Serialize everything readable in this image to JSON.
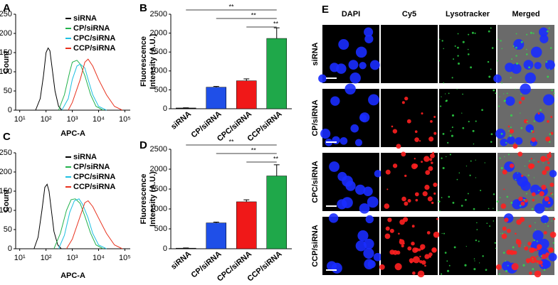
{
  "panel_labels": [
    "A",
    "B",
    "C",
    "D",
    "E"
  ],
  "chart_data": [
    {
      "type": "line",
      "log_x": true,
      "xlabel": "APC-A",
      "ylabel": "Count",
      "xlim": [
        7,
        160000
      ],
      "ylim": [
        0,
        250
      ],
      "xticks": [
        {
          "value": 10,
          "label": "10¹"
        },
        {
          "value": 100,
          "label": "10²"
        },
        {
          "value": 1000,
          "label": "10³"
        },
        {
          "value": 10000,
          "label": "10⁴"
        },
        {
          "value": 100000,
          "label": "10⁵"
        }
      ],
      "yticks": [
        0,
        50,
        100,
        150,
        200,
        250
      ],
      "legend": "upper right",
      "series": [
        {
          "name": "siRNA",
          "color": "#000000",
          "x": [
            40,
            60,
            80,
            100,
            120,
            140,
            170,
            220,
            300,
            400
          ],
          "values": [
            0,
            30,
            90,
            150,
            162,
            155,
            110,
            50,
            10,
            0
          ]
        },
        {
          "name": "CP/siRNA",
          "color": "#22b24c",
          "x": [
            300,
            500,
            800,
            1000,
            1500,
            2000,
            3000,
            5000,
            8000,
            15000
          ],
          "values": [
            0,
            40,
            100,
            125,
            130,
            120,
            90,
            40,
            10,
            0
          ]
        },
        {
          "name": "CPC/siRNA",
          "color": "#1fc0e0",
          "x": [
            400,
            700,
            1000,
            1500,
            2000,
            3000,
            4000,
            6000,
            10000,
            20000
          ],
          "values": [
            0,
            30,
            80,
            115,
            120,
            110,
            80,
            40,
            10,
            0
          ]
        },
        {
          "name": "CCP/siRNA",
          "color": "#e8321e",
          "x": [
            700,
            1000,
            2000,
            3000,
            4000,
            6000,
            10000,
            20000,
            40000,
            80000
          ],
          "values": [
            0,
            20,
            80,
            125,
            133,
            115,
            80,
            40,
            10,
            0
          ]
        }
      ]
    },
    {
      "type": "bar",
      "ylabel": [
        "Fluorescence",
        "Intensity (A.U.)"
      ],
      "categories": [
        "siRNA",
        "CP/siRNA",
        "CPC/siRNA",
        "CCP/siRNA"
      ],
      "values": [
        20,
        570,
        740,
        1860
      ],
      "errors": [
        5,
        20,
        50,
        280
      ],
      "colors": [
        "#000000",
        "#1f4fe8",
        "#f01818",
        "#1fa84a"
      ],
      "ylim": [
        0,
        2500
      ],
      "yticks": [
        0,
        500,
        1000,
        1500,
        2000,
        2500
      ],
      "annotations": [
        "**",
        "**",
        "**"
      ]
    },
    {
      "type": "line",
      "log_x": true,
      "xlabel": "APC-A",
      "ylabel": "Count",
      "xlim": [
        7,
        160000
      ],
      "ylim": [
        0,
        250
      ],
      "xticks": [
        {
          "value": 10,
          "label": "10¹"
        },
        {
          "value": 100,
          "label": "10²"
        },
        {
          "value": 1000,
          "label": "10³"
        },
        {
          "value": 10000,
          "label": "10⁴"
        },
        {
          "value": 100000,
          "label": "10⁵"
        }
      ],
      "yticks": [
        0,
        50,
        100,
        150,
        200,
        250
      ],
      "legend": "upper right",
      "series": [
        {
          "name": "siRNA",
          "color": "#000000",
          "x": [
            35,
            50,
            70,
            90,
            110,
            130,
            160,
            200,
            280,
            380
          ],
          "values": [
            0,
            30,
            100,
            160,
            168,
            150,
            100,
            45,
            10,
            0
          ]
        },
        {
          "name": "CP/siRNA",
          "color": "#22b24c",
          "x": [
            200,
            350,
            600,
            900,
            1300,
            2000,
            3000,
            5000,
            8000,
            15000
          ],
          "values": [
            0,
            40,
            100,
            128,
            130,
            118,
            85,
            40,
            10,
            0
          ]
        },
        {
          "name": "CPC/siRNA",
          "color": "#1fc0e0",
          "x": [
            300,
            500,
            800,
            1200,
            1800,
            2500,
            4000,
            6000,
            10000,
            20000
          ],
          "values": [
            0,
            35,
            95,
            125,
            130,
            115,
            80,
            40,
            10,
            0
          ]
        },
        {
          "name": "CCP/siRNA",
          "color": "#e8321e",
          "x": [
            600,
            1000,
            2000,
            3000,
            4000,
            6000,
            10000,
            20000,
            40000,
            80000
          ],
          "values": [
            0,
            25,
            85,
            120,
            125,
            110,
            80,
            40,
            10,
            0
          ]
        }
      ]
    },
    {
      "type": "bar",
      "ylabel": [
        "Fluorescence",
        "Intensity (A.U.)"
      ],
      "categories": [
        "siRNA",
        "CP/siRNA",
        "CPC/siRNA",
        "CCP/siRNA"
      ],
      "values": [
        15,
        650,
        1180,
        1830
      ],
      "errors": [
        5,
        20,
        50,
        280
      ],
      "colors": [
        "#000000",
        "#1f4fe8",
        "#f01818",
        "#1fa84a"
      ],
      "ylim": [
        0,
        2500
      ],
      "yticks": [
        0,
        500,
        1000,
        1500,
        2000,
        2500
      ],
      "annotations": [
        "**",
        "**",
        "**"
      ]
    }
  ],
  "panel_e": {
    "columns": [
      "DAPI",
      "Cy5",
      "Lysotracker",
      "Merged"
    ],
    "column_colors": [
      "#3b6cf0",
      "#e82020",
      "#22b24c",
      "#222222"
    ],
    "rows": [
      "siRNA",
      "CP/siRNA",
      "CPC/siRNA",
      "CCP/siRNA"
    ]
  }
}
